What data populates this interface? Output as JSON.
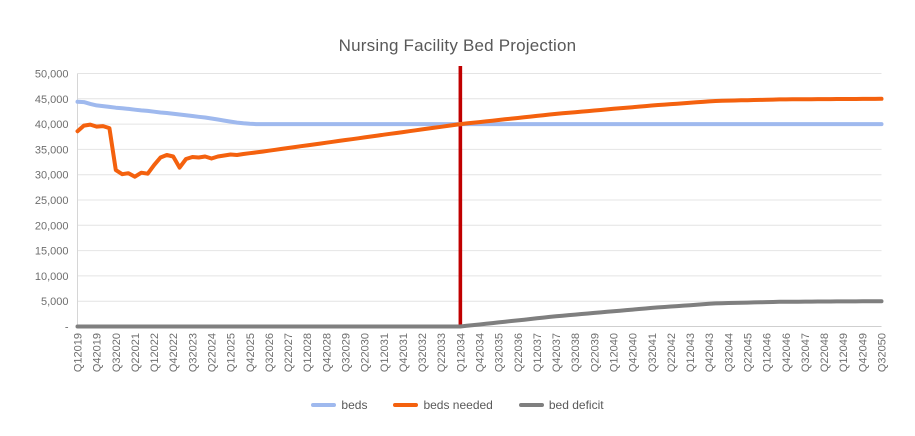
{
  "chart_data": {
    "type": "line",
    "title": "Nursing Facility Bed Projection",
    "xlabel": "",
    "ylabel": "",
    "ylim": [
      0,
      50000
    ],
    "y_tick_step": 5000,
    "y_tick_labels_top_to_bottom": [
      "50,000",
      "45,000",
      "40,000",
      "35,000",
      "30,000",
      "25,000",
      "20,000",
      "15,000",
      "10,000",
      "5,000",
      "-"
    ],
    "x_label_every": 3,
    "grid": "horizontal",
    "legend_position": "bottom",
    "annotation_vline": {
      "category": "Q12034",
      "color": "#C00000"
    },
    "categories": [
      "Q12019",
      "Q22019",
      "Q32019",
      "Q42019",
      "Q12020",
      "Q22020",
      "Q32020",
      "Q42020",
      "Q12021",
      "Q22021",
      "Q32021",
      "Q42021",
      "Q12022",
      "Q22022",
      "Q32022",
      "Q42022",
      "Q12023",
      "Q22023",
      "Q32023",
      "Q42023",
      "Q12024",
      "Q22024",
      "Q32024",
      "Q42024",
      "Q12025",
      "Q22025",
      "Q32025",
      "Q42025",
      "Q12026",
      "Q22026",
      "Q32026",
      "Q42026",
      "Q12027",
      "Q22027",
      "Q32027",
      "Q42027",
      "Q12028",
      "Q22028",
      "Q32028",
      "Q42028",
      "Q12029",
      "Q22029",
      "Q32029",
      "Q42029",
      "Q12030",
      "Q22030",
      "Q32030",
      "Q42030",
      "Q12031",
      "Q22031",
      "Q32031",
      "Q42031",
      "Q12032",
      "Q22032",
      "Q32032",
      "Q42032",
      "Q12033",
      "Q22033",
      "Q32033",
      "Q42033",
      "Q12034",
      "Q22034",
      "Q32034",
      "Q42034",
      "Q12035",
      "Q22035",
      "Q32035",
      "Q42035",
      "Q12036",
      "Q22036",
      "Q32036",
      "Q42036",
      "Q12037",
      "Q22037",
      "Q32037",
      "Q42037",
      "Q12038",
      "Q22038",
      "Q32038",
      "Q42038",
      "Q12039",
      "Q22039",
      "Q32039",
      "Q42039",
      "Q12040",
      "Q22040",
      "Q32040",
      "Q42040",
      "Q12041",
      "Q22041",
      "Q32041",
      "Q42041",
      "Q12042",
      "Q22042",
      "Q32042",
      "Q42042",
      "Q12043",
      "Q22043",
      "Q32043",
      "Q42043",
      "Q12044",
      "Q22044",
      "Q32044",
      "Q42044",
      "Q12045",
      "Q22045",
      "Q32045",
      "Q42045",
      "Q12046",
      "Q22046",
      "Q32046",
      "Q42046",
      "Q12047",
      "Q22047",
      "Q32047",
      "Q42047",
      "Q12048",
      "Q22048",
      "Q32048",
      "Q42048",
      "Q12049",
      "Q22049",
      "Q32049",
      "Q42049",
      "Q12050",
      "Q22050",
      "Q32050"
    ],
    "series": [
      {
        "name": "beds",
        "color": "#9FB9EE",
        "values": [
          44400,
          44350,
          44000,
          43700,
          43550,
          43400,
          43250,
          43150,
          43000,
          42850,
          42700,
          42600,
          42450,
          42300,
          42200,
          42050,
          41900,
          41750,
          41600,
          41450,
          41300,
          41100,
          40900,
          40700,
          40500,
          40300,
          40150,
          40050,
          40000,
          40000,
          40000,
          40000,
          40000,
          40000,
          40000,
          40000,
          40000,
          40000,
          40000,
          40000,
          40000,
          40000,
          40000,
          40000,
          40000,
          40000,
          40000,
          40000,
          40000,
          40000,
          40000,
          40000,
          40000,
          40000,
          40000,
          40000,
          40000,
          40000,
          40000,
          40000,
          40000,
          40000,
          40000,
          40000,
          40000,
          40000,
          40000,
          40000,
          40000,
          40000,
          40000,
          40000,
          40000,
          40000,
          40000,
          40000,
          40000,
          40000,
          40000,
          40000,
          40000,
          40000,
          40000,
          40000,
          40000,
          40000,
          40000,
          40000,
          40000,
          40000,
          40000,
          40000,
          40000,
          40000,
          40000,
          40000,
          40000,
          40000,
          40000,
          40000,
          40000,
          40000,
          40000,
          40000,
          40000,
          40000,
          40000,
          40000,
          40000,
          40000,
          40000,
          40000,
          40000,
          40000,
          40000,
          40000,
          40000,
          40000,
          40000,
          40000,
          40000,
          40000,
          40000,
          40000,
          40000,
          40000,
          40000
        ]
      },
      {
        "name": "beds needed",
        "color": "#F4610E",
        "values": [
          38600,
          39700,
          39900,
          39500,
          39600,
          39200,
          30900,
          30100,
          30300,
          29600,
          30400,
          30200,
          31900,
          33400,
          33900,
          33600,
          31400,
          33100,
          33500,
          33400,
          33600,
          33200,
          33600,
          33800,
          34000,
          33900,
          34100,
          34250,
          34400,
          34575,
          34750,
          34925,
          35100,
          35275,
          35450,
          35625,
          35800,
          35975,
          36150,
          36325,
          36500,
          36675,
          36850,
          37025,
          37200,
          37375,
          37550,
          37725,
          37900,
          38075,
          38250,
          38425,
          38600,
          38775,
          38950,
          39125,
          39300,
          39475,
          39650,
          39825,
          40000,
          40135,
          40270,
          40405,
          40540,
          40675,
          40810,
          40945,
          41080,
          41215,
          41350,
          41485,
          41620,
          41755,
          41890,
          42025,
          42135,
          42245,
          42355,
          42465,
          42575,
          42685,
          42795,
          42905,
          43015,
          43125,
          43235,
          43345,
          43455,
          43565,
          43675,
          43765,
          43855,
          43945,
          44035,
          44125,
          44215,
          44305,
          44395,
          44485,
          44575,
          44605,
          44635,
          44665,
          44695,
          44725,
          44755,
          44785,
          44815,
          44845,
          44875,
          44885,
          44895,
          44905,
          44915,
          44925,
          44935,
          44945,
          44950,
          44955,
          44960,
          44965,
          44970,
          44975,
          44980,
          44990,
          45000
        ]
      },
      {
        "name": "bed deficit",
        "color": "#7F7F7F",
        "values": [
          0,
          0,
          0,
          0,
          0,
          0,
          0,
          0,
          0,
          0,
          0,
          0,
          0,
          0,
          0,
          0,
          0,
          0,
          0,
          0,
          0,
          0,
          0,
          0,
          0,
          0,
          0,
          0,
          0,
          0,
          0,
          0,
          0,
          0,
          0,
          0,
          0,
          0,
          0,
          0,
          0,
          0,
          0,
          0,
          0,
          0,
          0,
          0,
          0,
          0,
          0,
          0,
          0,
          0,
          0,
          0,
          0,
          0,
          0,
          0,
          0,
          135,
          270,
          405,
          540,
          675,
          810,
          945,
          1080,
          1215,
          1350,
          1485,
          1620,
          1755,
          1890,
          2025,
          2135,
          2245,
          2355,
          2465,
          2575,
          2685,
          2795,
          2905,
          3015,
          3125,
          3235,
          3345,
          3455,
          3565,
          3675,
          3765,
          3855,
          3945,
          4035,
          4125,
          4215,
          4305,
          4395,
          4485,
          4575,
          4605,
          4635,
          4665,
          4695,
          4725,
          4755,
          4785,
          4815,
          4845,
          4875,
          4885,
          4895,
          4905,
          4915,
          4925,
          4935,
          4945,
          4950,
          4955,
          4960,
          4965,
          4970,
          4975,
          4980,
          4990,
          5000
        ]
      }
    ]
  },
  "legend": {
    "items": [
      {
        "label": "beds"
      },
      {
        "label": "beds needed"
      },
      {
        "label": "bed deficit"
      }
    ]
  }
}
